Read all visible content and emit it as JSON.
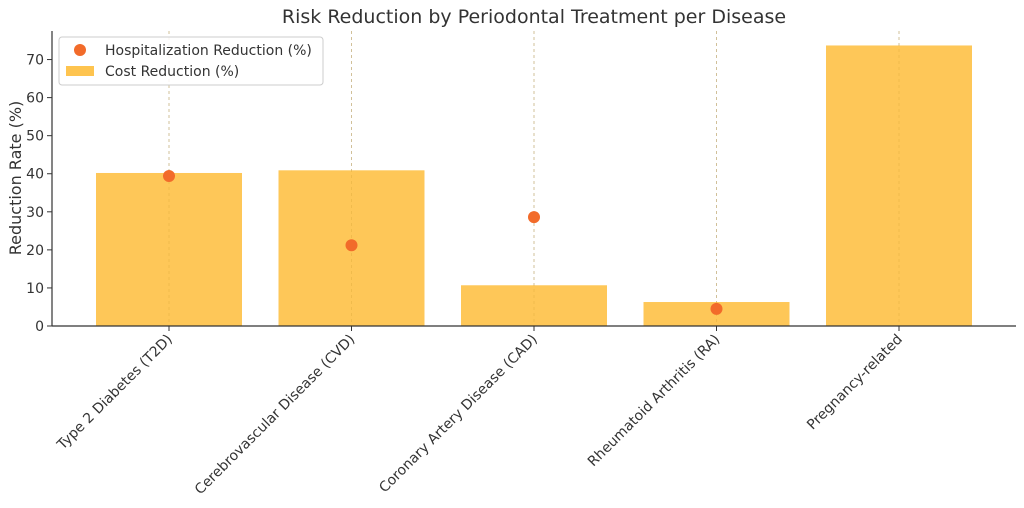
{
  "chart_data": {
    "type": "bar",
    "title": "Risk Reduction by Periodontal Treatment per Disease",
    "xlabel": "",
    "ylabel": "Reduction Rate (%)",
    "ylim": [
      0,
      77.5
    ],
    "yticks": [
      0,
      10,
      20,
      30,
      40,
      50,
      60,
      70
    ],
    "grid": "vertical",
    "legend_position": "top-left",
    "categories": [
      "Type 2 Diabetes (T2D)",
      "Cerebrovascular Disease (CVD)",
      "Coronary Artery Disease (CAD)",
      "Rheumatoid Arthritis (RA)",
      "Pregnancy-related"
    ],
    "series": [
      {
        "name": "Hospitalization Reduction (%)",
        "kind": "scatter",
        "color": "#f26b2a",
        "values": [
          39.4,
          21.2,
          28.6,
          4.5,
          null
        ]
      },
      {
        "name": "Cost Reduction (%)",
        "kind": "bar",
        "color": "#fec44f",
        "values": [
          40.2,
          40.9,
          10.7,
          6.3,
          73.7
        ]
      }
    ]
  }
}
